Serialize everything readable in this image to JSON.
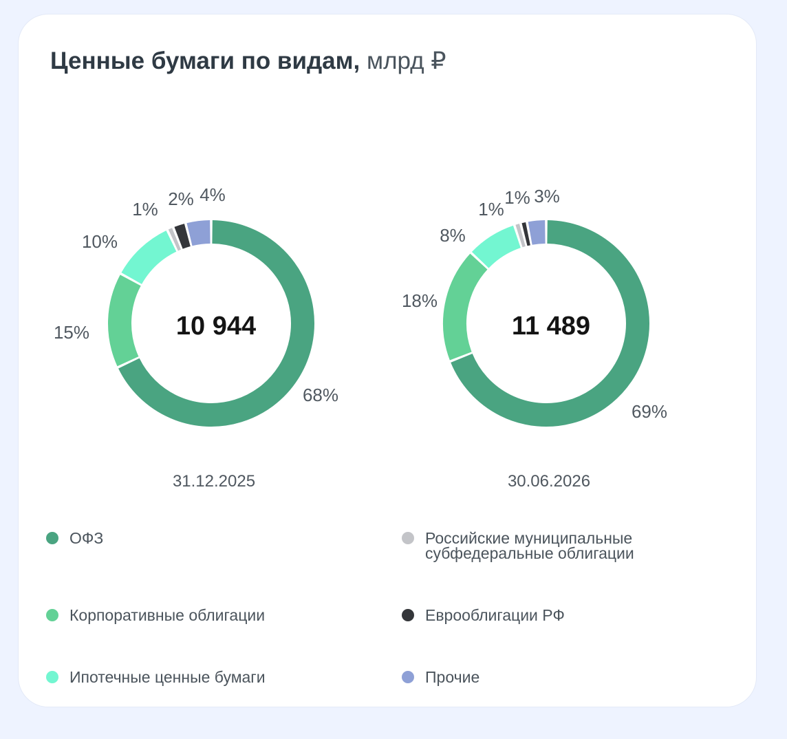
{
  "title": {
    "main": "Ценные бумаги по видам,",
    "unit": "млрд ₽"
  },
  "colors": {
    "ofz": "#4aa481",
    "corporate": "#63d196",
    "mortgage": "#73f6d1",
    "municipal": "#c3c4c8",
    "eurobonds": "#34363a",
    "other": "#8ea0d6"
  },
  "chart_data": [
    {
      "type": "donut",
      "title": "",
      "date": "31.12.2025",
      "total_label": "10 944",
      "total": 10944,
      "categories": [
        "ОФЗ",
        "Корпоративные облигации",
        "Ипотечные ценные бумаги",
        "Российские муниципальные субфедеральные облигации",
        "Еврооблигации РФ",
        "Прочие"
      ],
      "values": [
        68,
        15,
        10,
        1,
        2,
        4
      ],
      "labels": [
        "68%",
        "15%",
        "10%",
        "1%",
        "2%",
        "4%"
      ],
      "unit": "%"
    },
    {
      "type": "donut",
      "title": "",
      "date": "30.06.2026",
      "total_label": "11 489",
      "total": 11489,
      "categories": [
        "ОФЗ",
        "Корпоративные облигации",
        "Ипотечные ценные бумаги",
        "Российские муниципальные субфедеральные облигации",
        "Еврооблигации РФ",
        "Прочие"
      ],
      "values": [
        69,
        18,
        8,
        1,
        1,
        3
      ],
      "labels": [
        "69%",
        "18%",
        "8%",
        "1%",
        "1%",
        "3%"
      ],
      "unit": "%"
    }
  ],
  "legend": [
    {
      "label": "ОФЗ",
      "color": "#4aa481"
    },
    {
      "label": "Корпоративные облигации",
      "color": "#63d196"
    },
    {
      "label": "Ипотечные ценные бумаги",
      "color": "#73f6d1"
    },
    {
      "label": "Российские муниципальные\nсубфедеральные облигации",
      "color": "#c3c4c8"
    },
    {
      "label": "Еврооблигации РФ",
      "color": "#34363a"
    },
    {
      "label": "Прочие",
      "color": "#8ea0d6"
    }
  ]
}
